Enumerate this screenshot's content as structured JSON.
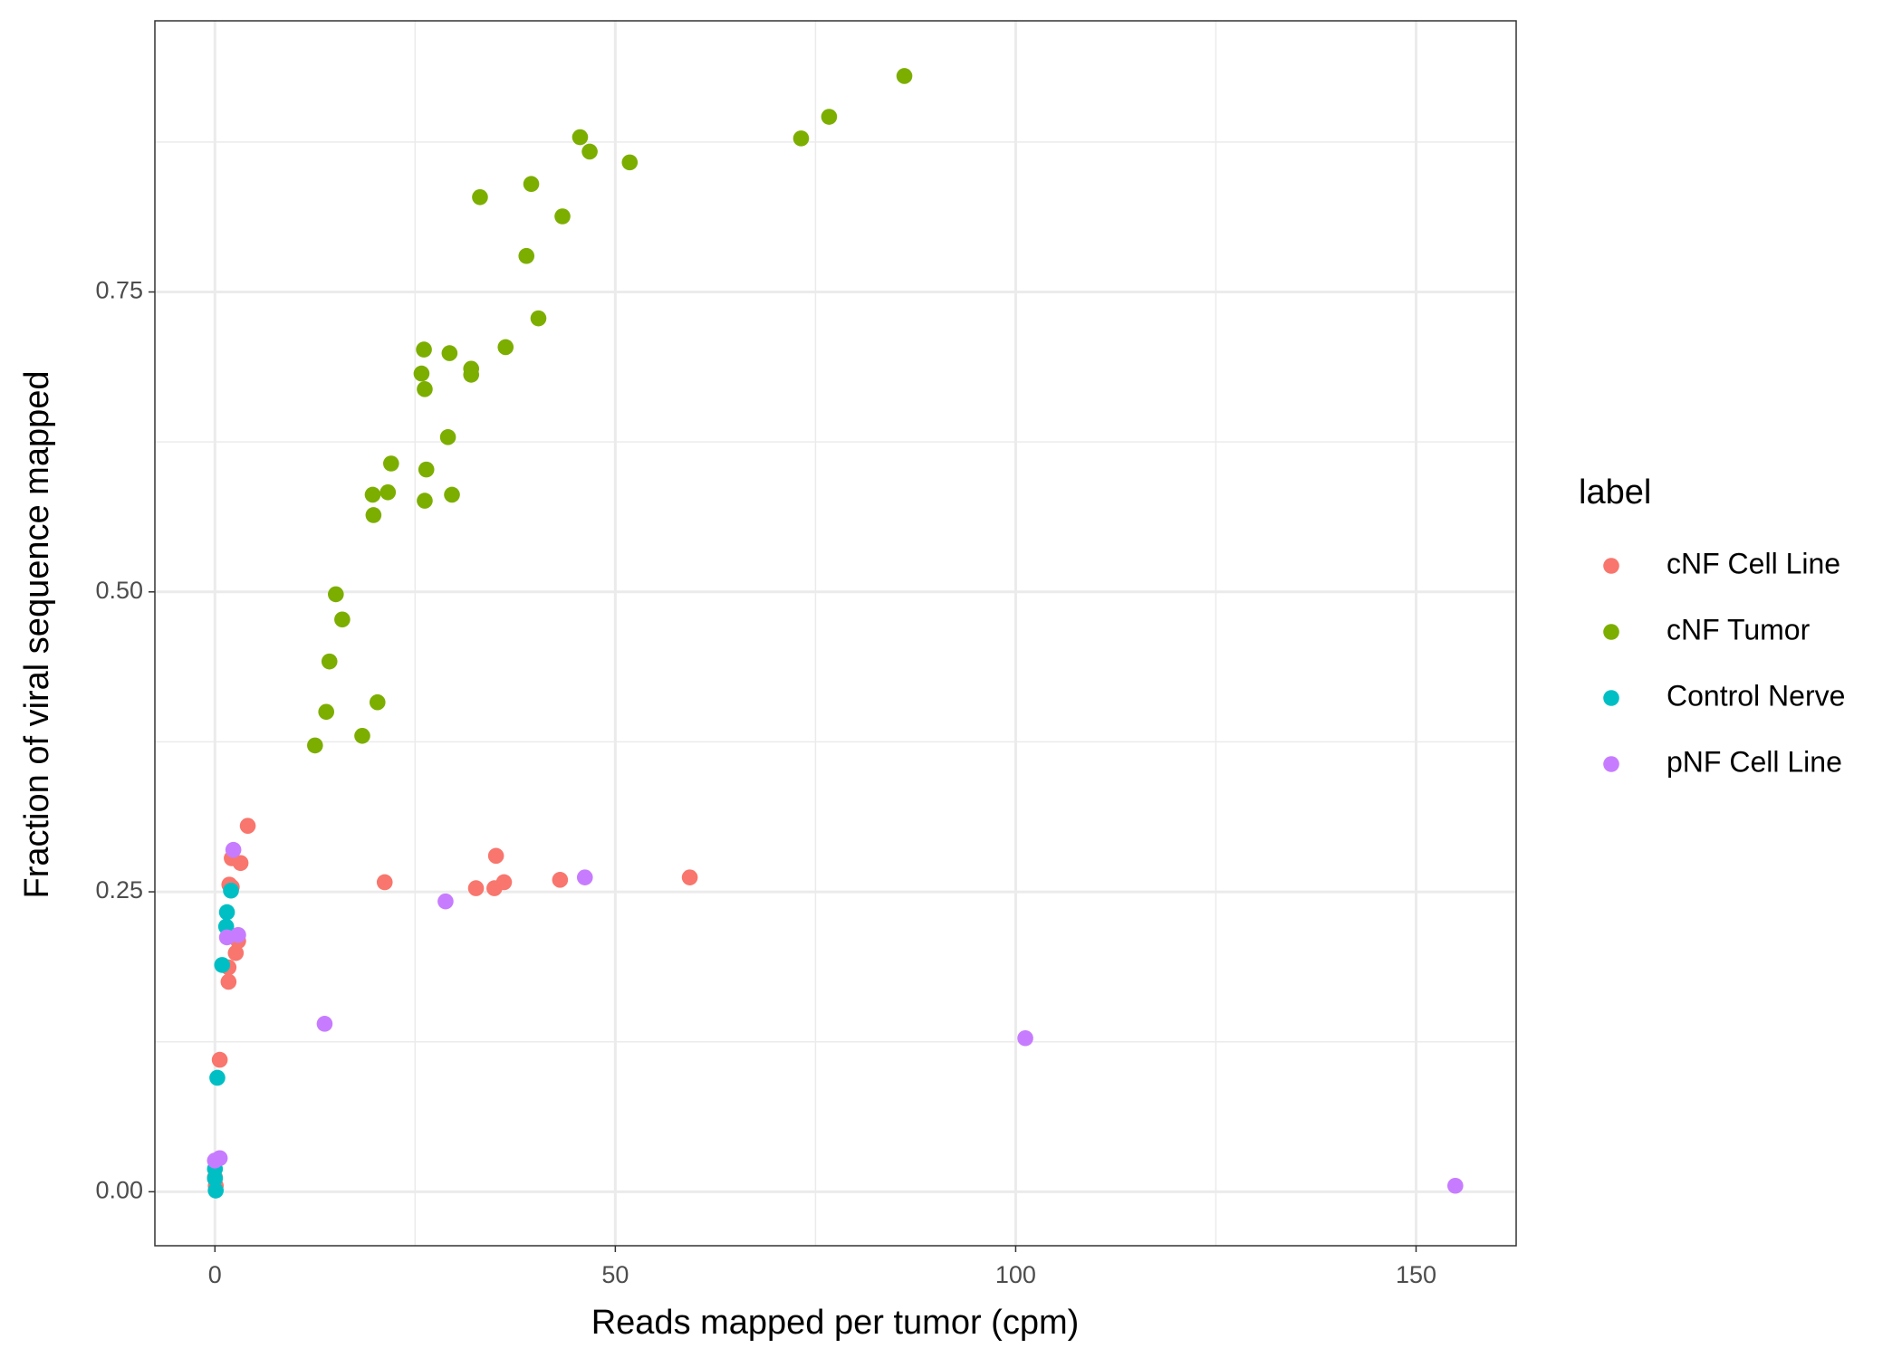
{
  "chart_data": {
    "type": "scatter",
    "x_label": "Reads mapped per tumor (cpm)",
    "y_label": "Fraction of viral sequence mapped",
    "legend_title": "label",
    "legend_position": "right",
    "grid": true,
    "xlim": [
      -7.5,
      162.5
    ],
    "ylim": [
      -0.045,
      0.976
    ],
    "xticks": [
      0,
      50,
      100,
      150
    ],
    "xminorticks": [
      25,
      75,
      125
    ],
    "yticks": [
      {
        "value": 0,
        "label": "0.00"
      },
      {
        "value": 0.25,
        "label": "0.25"
      },
      {
        "value": 0.5,
        "label": "0.50"
      },
      {
        "value": 0.75,
        "label": "0.75"
      }
    ],
    "yminorticks": [
      0.125,
      0.375,
      0.625,
      0.875
    ],
    "series": [
      {
        "name": "cNF Cell Line",
        "color": "#F8766D",
        "x": [
          4.1,
          2.1,
          3.2,
          1.8,
          2.1,
          2.9,
          2.6,
          1.7,
          1.7,
          0.6,
          21.2,
          35.1,
          32.6,
          34.9,
          36.1,
          43.1,
          59.3,
          0,
          0.1
        ],
        "values": [
          0.305,
          0.278,
          0.274,
          0.256,
          0.254,
          0.209,
          0.199,
          0.187,
          0.175,
          0.11,
          0.258,
          0.28,
          0.253,
          0.253,
          0.258,
          0.26,
          0.262,
          0.012,
          0.005
        ]
      },
      {
        "name": "cNF Tumor",
        "color": "#7CAE00",
        "x": [
          86.1,
          76.7,
          73.2,
          45.6,
          46.8,
          51.8,
          33.1,
          39.5,
          43.4,
          38.9,
          40.4,
          36.3,
          26.1,
          29.3,
          32.0,
          32.0,
          25.8,
          26.2,
          29.1,
          22.0,
          26.4,
          19.7,
          21.6,
          26.2,
          29.6,
          19.8,
          15.1,
          15.9,
          14.3,
          13.9,
          20.3,
          18.4,
          12.5
        ],
        "values": [
          0.93,
          0.896,
          0.878,
          0.879,
          0.867,
          0.858,
          0.829,
          0.84,
          0.813,
          0.78,
          0.728,
          0.704,
          0.702,
          0.699,
          0.686,
          0.681,
          0.682,
          0.669,
          0.629,
          0.607,
          0.602,
          0.581,
          0.583,
          0.576,
          0.581,
          0.564,
          0.498,
          0.477,
          0.442,
          0.4,
          0.408,
          0.38,
          0.372
        ]
      },
      {
        "name": "Control Nerve",
        "color": "#00BFC4",
        "x": [
          2.0,
          1.5,
          1.4,
          0.9,
          0.3,
          0,
          0,
          0.1
        ],
        "values": [
          0.251,
          0.233,
          0.221,
          0.189,
          0.095,
          0.019,
          0.011,
          0.001
        ]
      },
      {
        "name": "pNF Cell Line",
        "color": "#C77CFF",
        "x": [
          2.3,
          2.9,
          1.5,
          13.7,
          28.8,
          46.2,
          101.2,
          154.9,
          0.6,
          0
        ],
        "values": [
          0.285,
          0.214,
          0.212,
          0.14,
          0.242,
          0.262,
          0.128,
          0.005,
          0.028,
          0.026
        ]
      }
    ]
  }
}
